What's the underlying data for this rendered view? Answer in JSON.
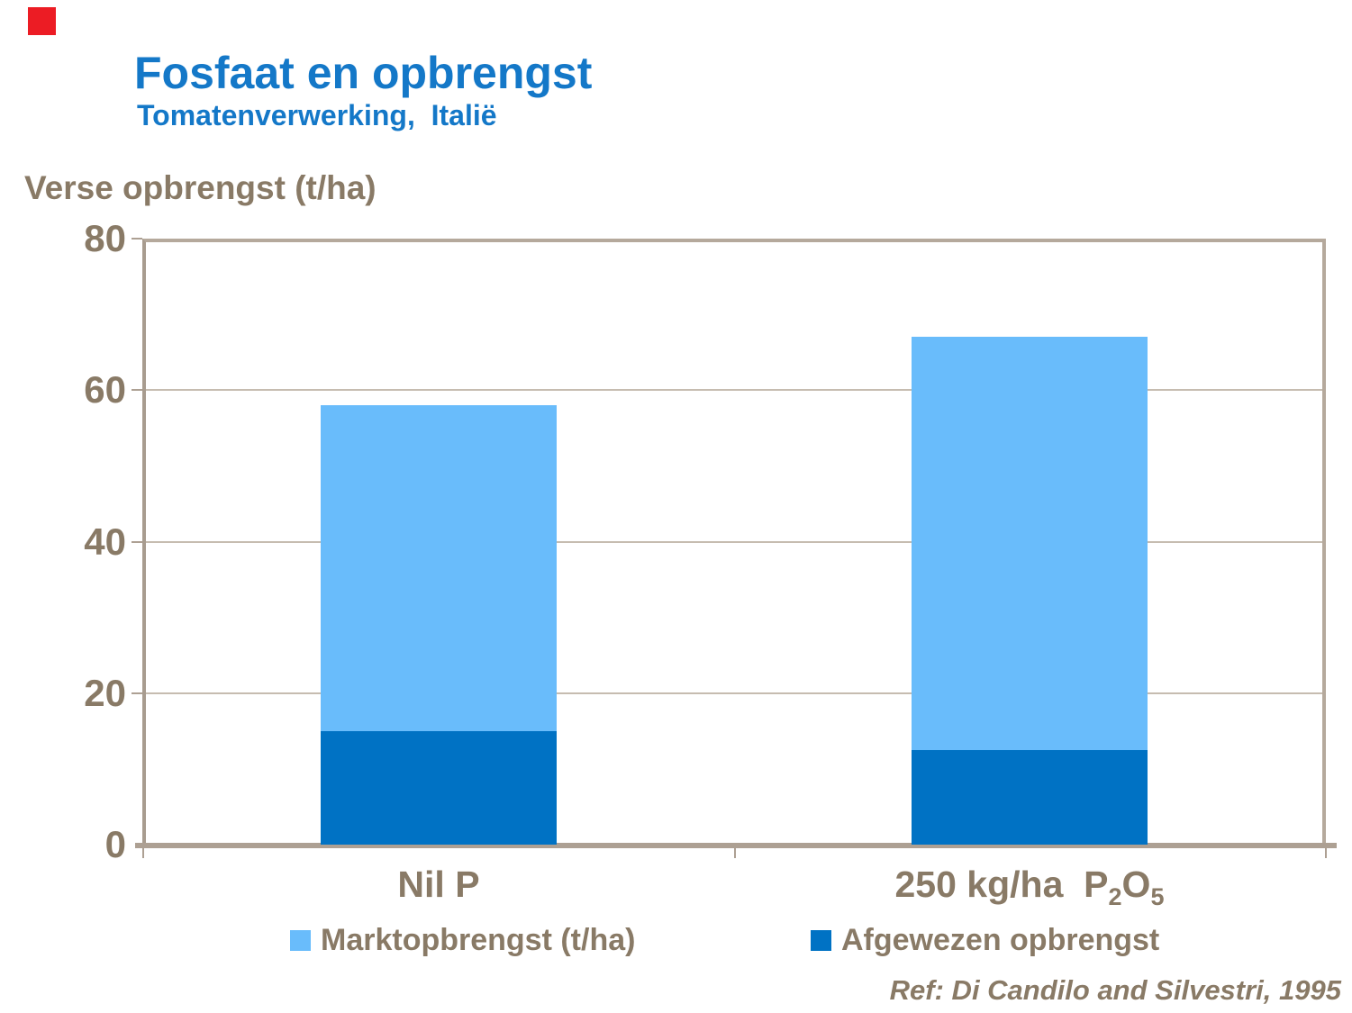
{
  "slide": {
    "title": "Fosfaat en opbrengst",
    "subtitle": "Tomatenverwerking,  Italië",
    "reference": "Ref: Di Candilo and Silvestri, 1995",
    "logo_color": "#EC1C24"
  },
  "colors": {
    "title": "#1478C8",
    "text": "#897A66",
    "axis": "#ADA093",
    "grid": "#C6BCB0",
    "border": "#B5A99C",
    "border_dark": "#A89C8F"
  },
  "chart_data": {
    "type": "bar",
    "stacked": true,
    "title": "Fosfaat en opbrengst",
    "subtitle": "Tomatenverwerking, Italië",
    "ylabel": "Verse opbrengst (t/ha)",
    "xlabel": "",
    "categories": [
      "Nil P",
      "250 kg/ha P₂O₅"
    ],
    "category_labels": [
      {
        "text": "Nil P"
      },
      {
        "pre": "250 kg/ha  P",
        "sub1": "2",
        "mid": "O",
        "sub2": "5"
      }
    ],
    "series": [
      {
        "name": "Marktopbrengst (t/ha)",
        "color": "#69BCFB",
        "stack_position": "top",
        "values": [
          43,
          54.5
        ]
      },
      {
        "name": "Afgewezen opbrengst",
        "color": "#0072C4",
        "stack_position": "bottom",
        "values": [
          15,
          12.5
        ]
      }
    ],
    "totals": [
      58,
      67
    ],
    "ylim": [
      0,
      80
    ],
    "yticks": [
      0,
      20,
      40,
      60,
      80
    ],
    "grid": true,
    "legend_position": "bottom"
  }
}
